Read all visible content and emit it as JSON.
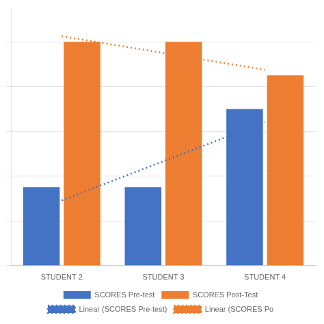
{
  "chart_data": {
    "type": "bar",
    "categories": [
      "STUDENT 2",
      "STUDENT 3",
      "STUDENT 4"
    ],
    "series": [
      {
        "name": "SCORES Pre-test",
        "type": "bar",
        "color": "#4472C4",
        "values": [
          3.5,
          3.5,
          7
        ]
      },
      {
        "name": "SCORES Post-Test",
        "type": "bar",
        "color": "#ED7D31",
        "values": [
          10,
          10,
          8.5
        ]
      },
      {
        "name": "Linear (SCORES Pre-test)",
        "type": "line",
        "line_style": "dotted",
        "color": "#4472C4",
        "values": [
          2.9166666666666665,
          4.666666666666667,
          6.416666666666667
        ]
      },
      {
        "name": "Linear (SCORES Po",
        "type": "line",
        "line_style": "dotted",
        "color": "#ED7D31",
        "values": [
          10.25,
          9.5,
          8.75
        ]
      }
    ],
    "ylim": [
      0,
      11.5
    ],
    "yticks": [
      0,
      2,
      4,
      6,
      8,
      10
    ],
    "grid": true,
    "legend": "bottom",
    "tick_labels": "x"
  }
}
